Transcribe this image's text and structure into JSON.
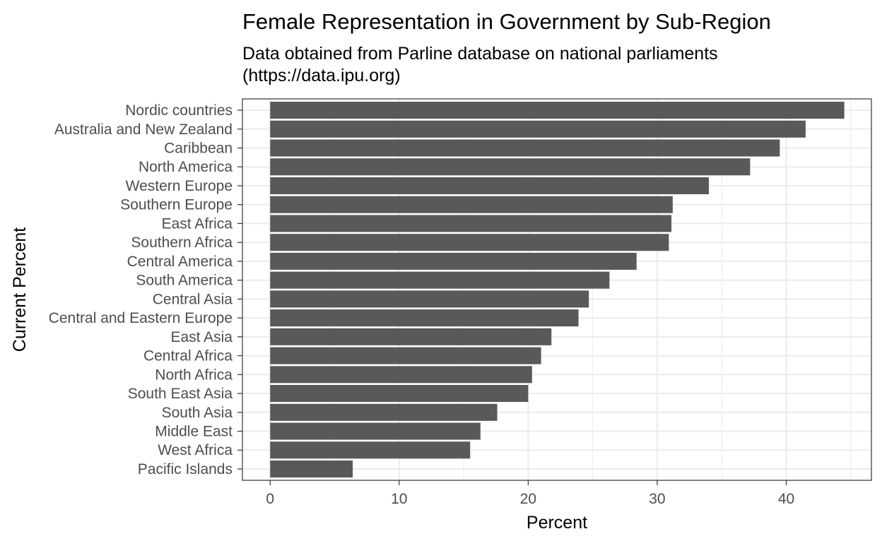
{
  "chart_data": {
    "type": "bar",
    "orientation": "horizontal",
    "title": "Female Representation in Government by Sub-Region",
    "subtitle_lines": [
      "Data obtained from Parline database on national parliaments",
      "(https://data.ipu.org)"
    ],
    "xlabel": "Percent",
    "ylabel": "Current Percent",
    "categories": [
      "Nordic countries",
      "Australia and New Zealand",
      "Caribbean",
      "North America",
      "Western Europe",
      "Southern Europe",
      "East Africa",
      "Southern Africa",
      "Central America",
      "South America",
      "Central Asia",
      "Central and Eastern Europe",
      "East Asia",
      "Central Africa",
      "North Africa",
      "South East Asia",
      "South Asia",
      "Middle East",
      "West Africa",
      "Pacific Islands"
    ],
    "values": [
      44.5,
      41.5,
      39.5,
      37.2,
      34.0,
      31.2,
      31.1,
      30.9,
      28.4,
      26.3,
      24.7,
      23.9,
      21.8,
      21.0,
      20.3,
      20.0,
      17.6,
      16.3,
      15.5,
      6.4
    ],
    "xlim": [
      -2.15,
      46.6
    ],
    "x_ticks": [
      0,
      10,
      20,
      30,
      40
    ],
    "grid": true,
    "bar_color": "#595959",
    "grid_color": "#ebebeb",
    "panel_border_color": "#333333"
  }
}
